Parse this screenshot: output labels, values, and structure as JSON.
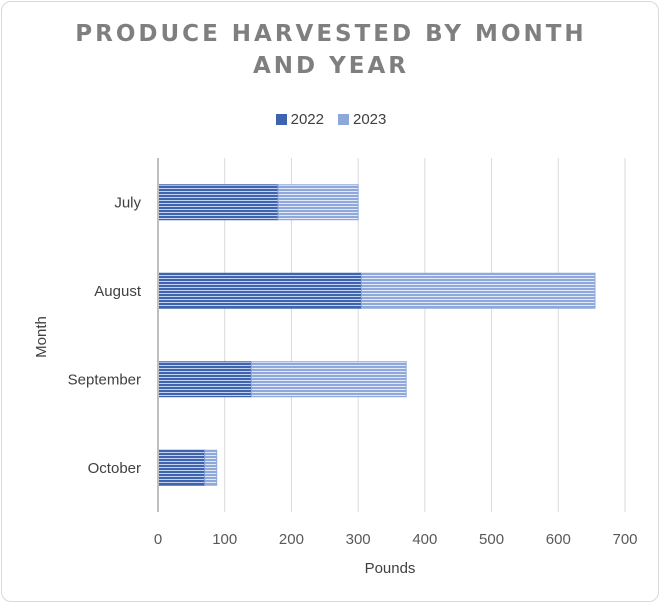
{
  "chart_data": {
    "type": "bar",
    "orientation": "horizontal",
    "stacked": true,
    "title": "PRODUCE HARVESTED BY MONTH AND YEAR",
    "title_lines": [
      "PRODUCE HARVESTED BY MONTH",
      "AND YEAR"
    ],
    "xlabel": "Pounds",
    "ylabel": "Month",
    "categories": [
      "July",
      "August",
      "September",
      "October"
    ],
    "series": [
      {
        "name": "2022",
        "values": [
          180,
          305,
          140,
          70
        ],
        "color": "#3e64b0"
      },
      {
        "name": "2023",
        "values": [
          120,
          350,
          232,
          18
        ],
        "color": "#8fa8db"
      }
    ],
    "xlim": [
      0,
      700
    ],
    "xticks": [
      0,
      100,
      200,
      300,
      400,
      500,
      600,
      700
    ],
    "grid": "vertical",
    "legend_position": "top"
  }
}
